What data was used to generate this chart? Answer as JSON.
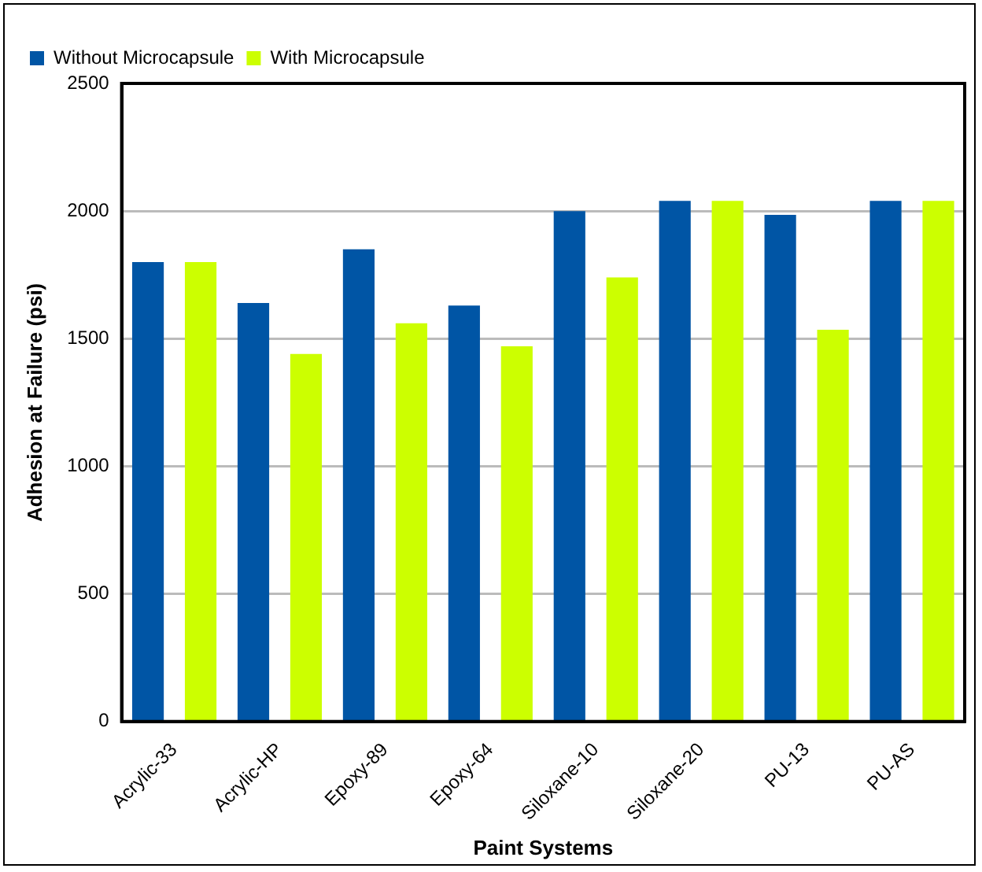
{
  "chart_data": {
    "type": "bar",
    "xlabel": "Paint Systems",
    "ylabel": "Adhesion at Failure (psi)",
    "categories": [
      "Acrylic-33",
      "Acrylic-HP",
      "Epoxy-89",
      "Epoxy-64",
      "Siloxane-10",
      "Siloxane-20",
      "PU-13",
      "PU-AS"
    ],
    "series": [
      {
        "name": "Without Microcapsule",
        "color": "#0055a5",
        "values": [
          1800,
          1640,
          1850,
          1630,
          2000,
          2040,
          1985,
          2040
        ]
      },
      {
        "name": "With Microcapsule",
        "color": "#ccff00",
        "values": [
          1800,
          1440,
          1560,
          1470,
          1740,
          2040,
          1535,
          2040
        ]
      }
    ],
    "ylim": [
      0,
      2500
    ],
    "yticks": [
      0,
      500,
      1000,
      1500,
      2000,
      2500
    ],
    "grid": "y",
    "legend": "top left"
  }
}
